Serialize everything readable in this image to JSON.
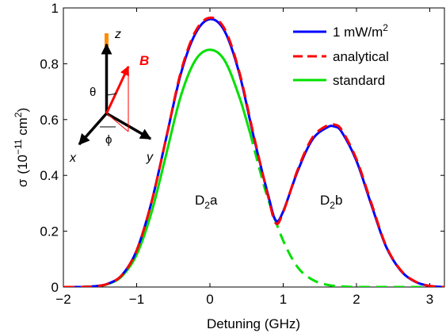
{
  "chart_data": {
    "type": "line",
    "xlabel": "Detuning (GHz)",
    "ylabel_symbol": "σ",
    "ylabel_unit_open": "(10",
    "ylabel_unit_exp": "−11",
    "ylabel_unit_cm": " cm",
    "ylabel_unit_exp2": "2",
    "ylabel_unit_close": ")",
    "xlim": [
      -2,
      3.2
    ],
    "ylim": [
      0,
      1
    ],
    "xticks": [
      -2,
      -1,
      0,
      1,
      2,
      3
    ],
    "xtick_labels": [
      "−2",
      "−1",
      "0",
      "1",
      "2",
      "3"
    ],
    "yticks": [
      0,
      0.2,
      0.4,
      0.6,
      0.8,
      1
    ],
    "ytick_labels": [
      "0",
      "0.2",
      "0.4",
      "0.6",
      "0.8",
      "1"
    ],
    "legend_position": "top-right",
    "legend": [
      {
        "key": "blue",
        "text": "1 mW/m",
        "sup": "2"
      },
      {
        "key": "red",
        "text": "analytical",
        "sup": ""
      },
      {
        "key": "green",
        "text": "standard",
        "sup": ""
      }
    ],
    "series": [
      {
        "key": "blue",
        "color": "#0000ff",
        "style": "solid",
        "x": [
          -2.0,
          -1.8,
          -1.6,
          -1.4,
          -1.2,
          -1.0,
          -0.8,
          -0.6,
          -0.4,
          -0.2,
          0.0,
          0.2,
          0.4,
          0.6,
          0.8,
          0.9,
          1.0,
          1.2,
          1.4,
          1.6,
          1.7,
          1.8,
          2.0,
          2.2,
          2.4,
          2.6,
          2.8,
          3.0,
          3.2
        ],
        "y": [
          0.0,
          0.0,
          0.002,
          0.011,
          0.043,
          0.131,
          0.301,
          0.53,
          0.761,
          0.907,
          0.96,
          0.917,
          0.766,
          0.535,
          0.324,
          0.238,
          0.271,
          0.417,
          0.529,
          0.572,
          0.575,
          0.555,
          0.452,
          0.297,
          0.147,
          0.06,
          0.019,
          0.004,
          0.0
        ]
      },
      {
        "key": "red",
        "color": "#ff0000",
        "style": "dashed",
        "x": [
          -2.0,
          -1.8,
          -1.6,
          -1.4,
          -1.2,
          -1.0,
          -0.8,
          -0.6,
          -0.4,
          -0.2,
          0.0,
          0.2,
          0.4,
          0.6,
          0.8,
          0.9,
          1.0,
          1.2,
          1.4,
          1.6,
          1.7,
          1.8,
          2.0,
          2.2,
          2.4,
          2.6,
          2.8,
          3.0,
          3.2
        ],
        "y": [
          0.0,
          0.0,
          0.002,
          0.011,
          0.043,
          0.131,
          0.301,
          0.53,
          0.768,
          0.915,
          0.965,
          0.925,
          0.772,
          0.541,
          0.318,
          0.228,
          0.268,
          0.422,
          0.536,
          0.579,
          0.582,
          0.562,
          0.458,
          0.303,
          0.15,
          0.062,
          0.02,
          0.004,
          0.0
        ]
      },
      {
        "key": "green-solid",
        "color": "#00e000",
        "style": "solid",
        "x": [
          -2.0,
          -1.8,
          -1.6,
          -1.4,
          -1.2,
          -1.0,
          -0.8,
          -0.6,
          -0.4,
          -0.2,
          0.0,
          0.2,
          0.4,
          0.55
        ],
        "y": [
          0.0,
          0.0,
          0.002,
          0.01,
          0.039,
          0.116,
          0.265,
          0.472,
          0.682,
          0.812,
          0.85,
          0.812,
          0.682,
          0.55
        ]
      },
      {
        "key": "green-dashed",
        "color": "#00e000",
        "style": "dashed",
        "x": [
          0.55,
          0.7,
          0.8,
          1.0,
          1.2,
          1.4,
          1.6,
          1.8,
          2.0,
          2.4,
          3.2
        ],
        "y": [
          0.55,
          0.4,
          0.31,
          0.166,
          0.07,
          0.026,
          0.008,
          0.002,
          0.0,
          0.0,
          0.0
        ]
      }
    ],
    "annotations": [
      {
        "key": "d2a",
        "main": "D",
        "sub": "2",
        "rest": "a",
        "x": 0.0,
        "y": 0.3
      },
      {
        "key": "d2b",
        "main": "D",
        "sub": "2",
        "rest": "b",
        "x": 1.75,
        "y": 0.22
      }
    ],
    "inset": {
      "z_label": "z",
      "x_label": "x",
      "y_label": "y",
      "b_label": "B",
      "theta_label": "θ",
      "phi_label": "ϕ",
      "colors": {
        "axes": "#000000",
        "b_vector": "#ff0000",
        "z_bar": "#ff8c00"
      }
    }
  }
}
